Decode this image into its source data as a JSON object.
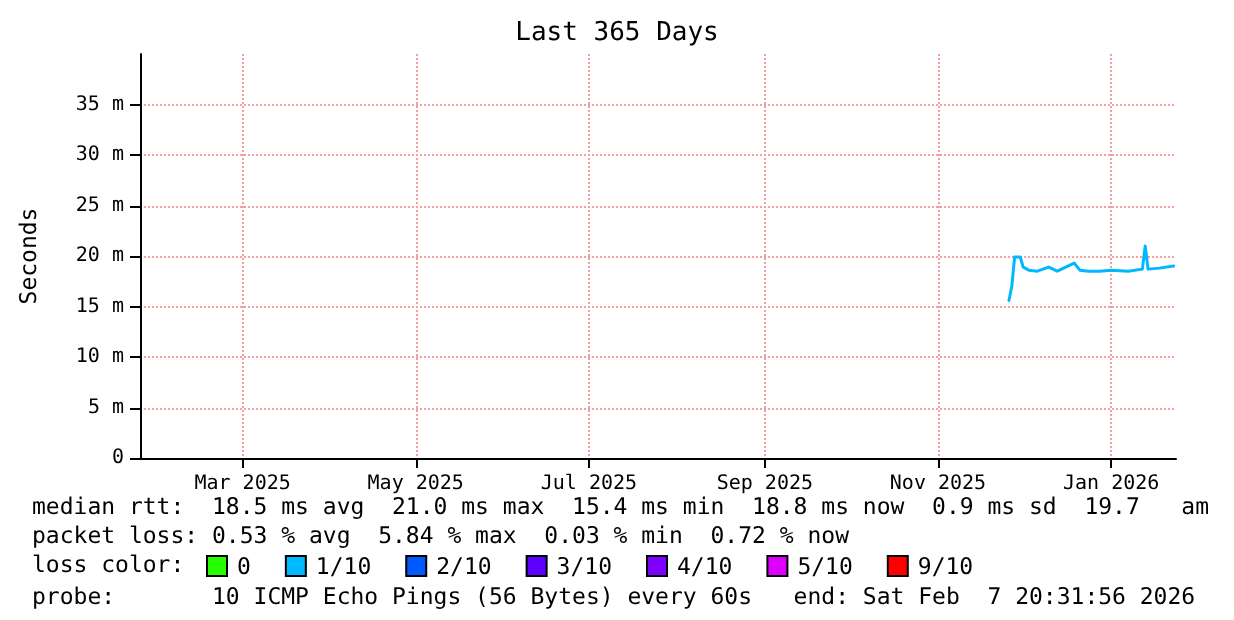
{
  "chart_data": {
    "type": "line",
    "title": "Last 365 Days",
    "ylabel": "Seconds",
    "xlim": [
      "2025-02-07T20:31",
      "2026-02-07T20:31"
    ],
    "xticks": [
      {
        "value": "2025-03-16",
        "label": "Mar 2025"
      },
      {
        "value": "2025-05-16",
        "label": "May 2025"
      },
      {
        "value": "2025-07-16",
        "label": "Jul 2025"
      },
      {
        "value": "2025-09-16",
        "label": "Sep 2025"
      },
      {
        "value": "2025-11-16",
        "label": "Nov 2025"
      },
      {
        "value": "2026-01-16",
        "label": "Jan 2026"
      }
    ],
    "ylim": [
      0,
      40
    ],
    "yticks": [
      0,
      {
        "value": 5,
        "label": "5 m"
      },
      {
        "value": 10,
        "label": "10 m"
      },
      {
        "value": 15,
        "label": "15 m"
      },
      {
        "value": 20,
        "label": "20 m"
      },
      {
        "value": 25,
        "label": "25 m"
      },
      {
        "value": 30,
        "label": "30 m"
      },
      {
        "value": 35,
        "label": "35 m"
      }
    ],
    "x": [
      "2025-12-11",
      "2025-12-12",
      "2025-12-13",
      "2025-12-15",
      "2025-12-16",
      "2025-12-18",
      "2025-12-21",
      "2025-12-25",
      "2025-12-28",
      "2026-01-03",
      "2026-01-05",
      "2026-01-08",
      "2026-01-12",
      "2026-01-16",
      "2026-01-22",
      "2026-01-27",
      "2026-01-28",
      "2026-01-29",
      "2026-02-02",
      "2026-02-07"
    ],
    "series": [
      {
        "name": "0",
        "color": "#26ff00",
        "values": [
          null,
          null,
          null,
          null,
          null,
          null,
          null,
          null,
          null,
          null,
          null,
          null,
          null,
          null,
          null,
          null,
          null,
          null,
          null,
          null
        ]
      },
      {
        "name": "1/10",
        "color": "#00b8ff",
        "values": [
          15.6,
          17.0,
          19.9,
          19.9,
          18.9,
          18.6,
          18.5,
          18.9,
          18.5,
          19.3,
          18.6,
          18.5,
          18.5,
          18.6,
          18.5,
          18.7,
          21.0,
          18.7,
          18.8,
          19.0
        ]
      },
      {
        "name": "2/10",
        "color": "#0059ff",
        "values": [
          null,
          null,
          null,
          null,
          null,
          null,
          null,
          null,
          null,
          null,
          null,
          null,
          null,
          null,
          null,
          null,
          null,
          null,
          null,
          null
        ]
      },
      {
        "name": "3/10",
        "color": "#5e00ff",
        "values": [
          null,
          null,
          null,
          null,
          null,
          null,
          null,
          null,
          null,
          null,
          null,
          null,
          null,
          null,
          null,
          null,
          null,
          null,
          null,
          null
        ]
      },
      {
        "name": "4/10",
        "color": "#7e00ff",
        "values": [
          null,
          null,
          null,
          null,
          null,
          null,
          null,
          null,
          null,
          null,
          null,
          null,
          null,
          null,
          null,
          null,
          null,
          null,
          null,
          null
        ]
      },
      {
        "name": "5/10",
        "color": "#dd00ff",
        "values": [
          null,
          null,
          null,
          null,
          null,
          null,
          null,
          null,
          null,
          null,
          null,
          null,
          null,
          null,
          null,
          null,
          null,
          null,
          null,
          null
        ]
      },
      {
        "name": "9/10",
        "color": "#ff0000",
        "values": [
          null,
          null,
          null,
          null,
          null,
          null,
          null,
          null,
          null,
          null,
          null,
          null,
          null,
          null,
          null,
          null,
          null,
          null,
          null,
          null
        ]
      }
    ],
    "legend": "bottom left",
    "grid": true,
    "marker": "none",
    "line_style": "solid",
    "annotations": [
      "median rtt:  18.5 ms avg  21.0 ms max  15.4 ms min  18.8 ms now  0.9 ms sd  19.7   am",
      "packet loss: 0.53 % avg  5.84 % max  0.03 % min  0.72 % now",
      "loss color:",
      "probe:       10 ICMP Echo Pings (56 Bytes) every 60s   end: Sat Feb  7 20:31:56 2026"
    ]
  }
}
